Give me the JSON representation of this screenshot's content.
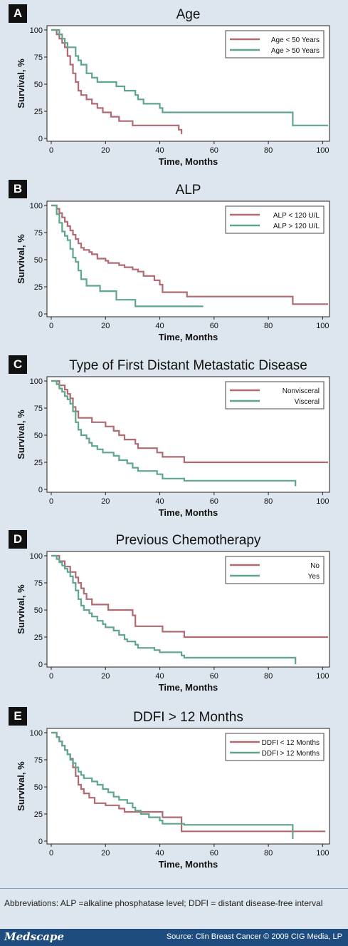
{
  "colors": {
    "red": "#b06a72",
    "green": "#5fa68d",
    "background": "#dde6ee",
    "footer": "#1e4c7e"
  },
  "chart_data": [
    {
      "type": "line",
      "letter": "A",
      "title": "Age",
      "xlabel": "Time, Months",
      "ylabel": "Survival, %",
      "xlim": [
        0,
        102
      ],
      "ylim": [
        0,
        100
      ],
      "xticks": [
        0,
        20,
        40,
        60,
        80,
        100
      ],
      "yticks": [
        0,
        25,
        50,
        75,
        100
      ],
      "legend_position": "top-right",
      "series": [
        {
          "name": "Age < 50 Years",
          "color": "#b06a72",
          "points": [
            [
              0,
              100
            ],
            [
              2,
              96
            ],
            [
              3,
              92
            ],
            [
              4,
              88
            ],
            [
              5,
              84
            ],
            [
              6,
              76
            ],
            [
              7,
              68
            ],
            [
              8,
              60
            ],
            [
              9,
              52
            ],
            [
              10,
              44
            ],
            [
              11,
              40
            ],
            [
              13,
              36
            ],
            [
              15,
              32
            ],
            [
              17,
              28
            ],
            [
              19,
              24
            ],
            [
              22,
              20
            ],
            [
              25,
              16
            ],
            [
              30,
              12
            ],
            [
              40,
              12
            ],
            [
              47,
              8
            ],
            [
              48,
              4
            ]
          ]
        },
        {
          "name": "Age > 50 Years",
          "color": "#5fa68d",
          "points": [
            [
              0,
              100
            ],
            [
              3,
              96
            ],
            [
              4,
              92
            ],
            [
              5,
              88
            ],
            [
              6,
              84
            ],
            [
              9,
              76
            ],
            [
              10,
              72
            ],
            [
              11,
              68
            ],
            [
              13,
              60
            ],
            [
              15,
              56
            ],
            [
              17,
              52
            ],
            [
              24,
              48
            ],
            [
              27,
              44
            ],
            [
              31,
              40
            ],
            [
              32,
              36
            ],
            [
              34,
              32
            ],
            [
              40,
              28
            ],
            [
              41,
              24
            ],
            [
              88,
              24
            ],
            [
              89,
              12
            ],
            [
              102,
              12
            ]
          ]
        }
      ]
    },
    {
      "type": "line",
      "letter": "B",
      "title": "ALP",
      "xlabel": "Time, Months",
      "ylabel": "Survival, %",
      "xlim": [
        0,
        102
      ],
      "ylim": [
        0,
        100
      ],
      "xticks": [
        0,
        20,
        40,
        60,
        80,
        100
      ],
      "yticks": [
        0,
        25,
        50,
        75,
        100
      ],
      "legend_position": "top-right",
      "series": [
        {
          "name": "ALP < 120 U/L",
          "color": "#b06a72",
          "points": [
            [
              0,
              100
            ],
            [
              2,
              97
            ],
            [
              3,
              93
            ],
            [
              4,
              89
            ],
            [
              5,
              85
            ],
            [
              6,
              81
            ],
            [
              7,
              77
            ],
            [
              8,
              73
            ],
            [
              9,
              69
            ],
            [
              10,
              65
            ],
            [
              11,
              61
            ],
            [
              12,
              59
            ],
            [
              14,
              57
            ],
            [
              15,
              55
            ],
            [
              17,
              51
            ],
            [
              20,
              49
            ],
            [
              21,
              47
            ],
            [
              25,
              45
            ],
            [
              27,
              43
            ],
            [
              30,
              41
            ],
            [
              32,
              39
            ],
            [
              34,
              35
            ],
            [
              38,
              31
            ],
            [
              40,
              27
            ],
            [
              41,
              20
            ],
            [
              49,
              20
            ],
            [
              50,
              16
            ],
            [
              88,
              16
            ],
            [
              89,
              9
            ],
            [
              102,
              9
            ]
          ]
        },
        {
          "name": "ALP > 120 U/L",
          "color": "#5fa68d",
          "points": [
            [
              0,
              100
            ],
            [
              2,
              92
            ],
            [
              3,
              84
            ],
            [
              4,
              76
            ],
            [
              5,
              72
            ],
            [
              6,
              68
            ],
            [
              7,
              60
            ],
            [
              8,
              52
            ],
            [
              9,
              48
            ],
            [
              10,
              40
            ],
            [
              11,
              32
            ],
            [
              13,
              26
            ],
            [
              18,
              21
            ],
            [
              24,
              13
            ],
            [
              31,
              7
            ],
            [
              56,
              7
            ]
          ]
        }
      ]
    },
    {
      "type": "line",
      "letter": "C",
      "title": "Type of First Distant Metastatic Disease",
      "xlabel": "Time, Months",
      "ylabel": "Survival, %",
      "xlim": [
        0,
        102
      ],
      "ylim": [
        0,
        100
      ],
      "xticks": [
        0,
        20,
        40,
        60,
        80,
        100
      ],
      "yticks": [
        0,
        25,
        50,
        75,
        100
      ],
      "legend_position": "top-right",
      "series": [
        {
          "name": "Nonvisceral",
          "color": "#b06a72",
          "points": [
            [
              0,
              100
            ],
            [
              3,
              96
            ],
            [
              5,
              92
            ],
            [
              6,
              88
            ],
            [
              7,
              84
            ],
            [
              8,
              76
            ],
            [
              9,
              72
            ],
            [
              10,
              66
            ],
            [
              15,
              62
            ],
            [
              20,
              58
            ],
            [
              23,
              54
            ],
            [
              25,
              50
            ],
            [
              27,
              46
            ],
            [
              31,
              42
            ],
            [
              32,
              38
            ],
            [
              39,
              34
            ],
            [
              41,
              30
            ],
            [
              48,
              30
            ],
            [
              49,
              25
            ],
            [
              102,
              25
            ]
          ]
        },
        {
          "name": "Visceral",
          "color": "#5fa68d",
          "points": [
            [
              0,
              100
            ],
            [
              2,
              97
            ],
            [
              3,
              93
            ],
            [
              4,
              90
            ],
            [
              5,
              86
            ],
            [
              6,
              83
            ],
            [
              7,
              79
            ],
            [
              8,
              72
            ],
            [
              9,
              62
            ],
            [
              10,
              55
            ],
            [
              11,
              50
            ],
            [
              13,
              47
            ],
            [
              14,
              43
            ],
            [
              15,
              40
            ],
            [
              17,
              37
            ],
            [
              19,
              34
            ],
            [
              23,
              31
            ],
            [
              25,
              27
            ],
            [
              28,
              24
            ],
            [
              30,
              20
            ],
            [
              32,
              17
            ],
            [
              39,
              14
            ],
            [
              41,
              10
            ],
            [
              48,
              10
            ],
            [
              49,
              8
            ],
            [
              89,
              8
            ],
            [
              90,
              3
            ]
          ]
        }
      ]
    },
    {
      "type": "line",
      "letter": "D",
      "title": "Previous Chemotherapy",
      "xlabel": "Time, Months",
      "ylabel": "Survival, %",
      "xlim": [
        0,
        102
      ],
      "ylim": [
        0,
        100
      ],
      "xticks": [
        0,
        20,
        40,
        60,
        80,
        100
      ],
      "yticks": [
        0,
        25,
        50,
        75,
        100
      ],
      "legend_position": "top-right",
      "series": [
        {
          "name": "No",
          "color": "#b06a72",
          "points": [
            [
              0,
              100
            ],
            [
              3,
              95
            ],
            [
              5,
              90
            ],
            [
              7,
              85
            ],
            [
              9,
              80
            ],
            [
              10,
              75
            ],
            [
              11,
              70
            ],
            [
              12,
              65
            ],
            [
              13,
              60
            ],
            [
              15,
              55
            ],
            [
              21,
              50
            ],
            [
              30,
              45
            ],
            [
              31,
              35
            ],
            [
              41,
              30
            ],
            [
              49,
              25
            ],
            [
              102,
              25
            ]
          ]
        },
        {
          "name": "Yes",
          "color": "#5fa68d",
          "points": [
            [
              0,
              100
            ],
            [
              2,
              97
            ],
            [
              3,
              94
            ],
            [
              4,
              91
            ],
            [
              5,
              88
            ],
            [
              6,
              85
            ],
            [
              7,
              81
            ],
            [
              8,
              75
            ],
            [
              9,
              68
            ],
            [
              10,
              60
            ],
            [
              11,
              54
            ],
            [
              12,
              50
            ],
            [
              14,
              47
            ],
            [
              15,
              44
            ],
            [
              17,
              40
            ],
            [
              19,
              37
            ],
            [
              20,
              34
            ],
            [
              23,
              31
            ],
            [
              25,
              27
            ],
            [
              27,
              23
            ],
            [
              28,
              21
            ],
            [
              31,
              18
            ],
            [
              32,
              15
            ],
            [
              36,
              15
            ],
            [
              38,
              13
            ],
            [
              40,
              11
            ],
            [
              48,
              8
            ],
            [
              49,
              6
            ],
            [
              89,
              6
            ],
            [
              90,
              0
            ]
          ]
        }
      ]
    },
    {
      "type": "line",
      "letter": "E",
      "title": "DDFI > 12 Months",
      "xlabel": "Time, Months",
      "ylabel": "Survival, %",
      "xlim": [
        0,
        102
      ],
      "ylim": [
        0,
        100
      ],
      "xticks": [
        0,
        20,
        40,
        60,
        80,
        100
      ],
      "yticks": [
        0,
        25,
        50,
        75,
        100
      ],
      "legend_position": "top-right",
      "series": [
        {
          "name": "DDFI < 12 Months",
          "color": "#b06a72",
          "points": [
            [
              0,
              100
            ],
            [
              2,
              96
            ],
            [
              3,
              92
            ],
            [
              4,
              88
            ],
            [
              5,
              84
            ],
            [
              6,
              80
            ],
            [
              7,
              76
            ],
            [
              8,
              68
            ],
            [
              9,
              60
            ],
            [
              10,
              52
            ],
            [
              11,
              48
            ],
            [
              12,
              44
            ],
            [
              14,
              40
            ],
            [
              16,
              35
            ],
            [
              20,
              33
            ],
            [
              25,
              30
            ],
            [
              27,
              27
            ],
            [
              40,
              27
            ],
            [
              41,
              22
            ],
            [
              47,
              22
            ],
            [
              48,
              9
            ],
            [
              101,
              9
            ]
          ]
        },
        {
          "name": "DDFI > 12 Months",
          "color": "#5fa68d",
          "points": [
            [
              0,
              100
            ],
            [
              2,
              96
            ],
            [
              3,
              92
            ],
            [
              4,
              88
            ],
            [
              5,
              84
            ],
            [
              6,
              80
            ],
            [
              7,
              75
            ],
            [
              8,
              72
            ],
            [
              9,
              68
            ],
            [
              10,
              64
            ],
            [
              11,
              61
            ],
            [
              12,
              58
            ],
            [
              15,
              55
            ],
            [
              17,
              52
            ],
            [
              19,
              48
            ],
            [
              21,
              45
            ],
            [
              23,
              41
            ],
            [
              25,
              38
            ],
            [
              28,
              35
            ],
            [
              30,
              31
            ],
            [
              31,
              28
            ],
            [
              33,
              25
            ],
            [
              36,
              22
            ],
            [
              40,
              19
            ],
            [
              41,
              16
            ],
            [
              48,
              16
            ],
            [
              49,
              15
            ],
            [
              88,
              15
            ],
            [
              89,
              2
            ]
          ]
        }
      ]
    }
  ],
  "footnote": "Abbreviations: ALP =alkaline phosphatase level; DDFI = distant disease-free interval",
  "footer": {
    "brand": "Medscape",
    "source": "Source: Clin Breast Cancer © 2009 CIG Media, LP"
  }
}
